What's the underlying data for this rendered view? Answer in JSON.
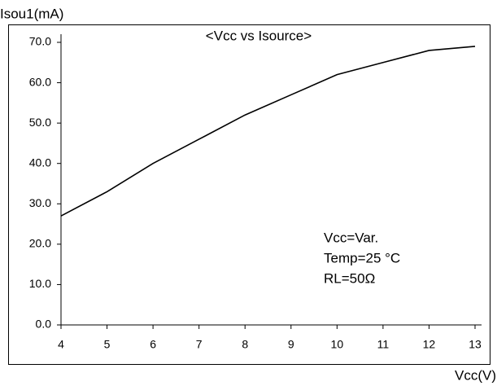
{
  "chart_data": {
    "type": "line",
    "title": "<Vcc vs Isource>",
    "y_label": "Isou1(mA)",
    "x_label": "Vcc(V)",
    "annotations": [
      "Vcc=Var.",
      "Temp=25 °C",
      "RL=50Ω"
    ],
    "x": [
      4,
      5,
      6,
      7,
      8,
      9,
      10,
      11,
      12,
      13
    ],
    "series": [
      {
        "color": "#000000",
        "values": [
          27,
          33,
          40,
          46,
          52,
          57,
          62,
          65,
          68,
          69
        ]
      }
    ],
    "xlim": [
      4,
      13
    ],
    "xticks": [
      4,
      5,
      6,
      7,
      8,
      9,
      10,
      11,
      12,
      13
    ],
    "ylim": [
      0,
      70
    ],
    "yticks": [
      {
        "value": 0,
        "label": "0.0"
      },
      {
        "value": 10,
        "label": "10.0"
      },
      {
        "value": 20,
        "label": "20.0"
      },
      {
        "value": 30,
        "label": "30.0"
      },
      {
        "value": 40,
        "label": "40.0"
      },
      {
        "value": 50,
        "label": "50.0"
      },
      {
        "value": 60,
        "label": "60.0"
      },
      {
        "value": 70,
        "label": "70.0"
      }
    ],
    "grid": false
  }
}
